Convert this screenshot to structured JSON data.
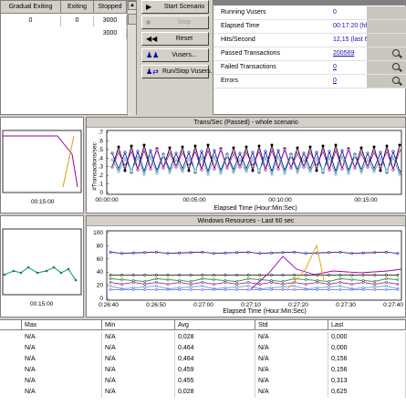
{
  "groups_grid": {
    "columns": [
      "Gradual Exiting",
      "Exiting",
      "Stopped"
    ],
    "rows": [
      [
        "0",
        "0",
        "3000"
      ],
      [
        "",
        "",
        "3000"
      ]
    ]
  },
  "controls": {
    "start_label": "Start Scenario",
    "stop_label": "Stop",
    "reset_label": "Reset",
    "vusers_label": "Vusers...",
    "runstop_label": "Run/Stop Vusers..."
  },
  "scenario_status": {
    "rows": [
      {
        "name": "Running Vusers",
        "value": "0",
        "link": false
      },
      {
        "name": "Elapsed Time",
        "value": "00:17:20 (hh:mm:ss)",
        "link": false
      },
      {
        "name": "Hits/Second",
        "value": "12,15 (last 60 sec)",
        "link": false
      },
      {
        "name": "Passed Transactions",
        "value": "200569",
        "link": true
      },
      {
        "name": "Failed Transactions",
        "value": "0",
        "link": true
      },
      {
        "name": "Errors",
        "value": "0",
        "link": true
      }
    ]
  },
  "graph_left_top": {
    "xtick": "00:15:00"
  },
  "graph_trans": {
    "title": "Trans/Sec (Passed) - whole scenario",
    "xlabel": "Elapsed Time (Hour:Min:Sec)",
    "ylabel": "#Transactions/sec",
    "yticks": [
      ".7",
      ".6",
      ".5",
      ".4",
      ".3",
      ".2",
      ".1",
      "0"
    ],
    "xticks": [
      "00:00:00",
      "00:05:00",
      "00:10:00",
      "00:15:00"
    ]
  },
  "graph_left_bottom": {
    "xtick": "00:15:00"
  },
  "graph_win": {
    "title": "Windows Resources - Last 60 sec",
    "xlabel": "Elapsed Time (Hour:Min:Sec)",
    "yticks": [
      "100",
      "80",
      "60",
      "40",
      "20",
      "0"
    ],
    "xticks": [
      "0:26:40",
      "0:26:50",
      "0:27:00",
      "0:27:10",
      "0:27:20",
      "0:27:30",
      "0:27:40"
    ]
  },
  "measurements": {
    "columns": [
      "Max",
      "Min",
      "Avg",
      "Std",
      "Last"
    ],
    "rows": [
      [
        "N/A",
        "N/A",
        "0,028",
        "N/A",
        "0,000"
      ],
      [
        "N/A",
        "N/A",
        "0,464",
        "N/A",
        "0,000"
      ],
      [
        "N/A",
        "N/A",
        "0,464",
        "N/A",
        "0,156"
      ],
      [
        "N/A",
        "N/A",
        "0,459",
        "N/A",
        "0,156"
      ],
      [
        "N/A",
        "N/A",
        "0,455",
        "N/A",
        "0,313"
      ],
      [
        "N/A",
        "N/A",
        "0,028",
        "N/A",
        "0,625"
      ]
    ]
  },
  "colors": {
    "face": "#d4d0c8",
    "link": "#1010b0",
    "series": [
      "#000000",
      "#0000a0",
      "#008000",
      "#e0a000",
      "#a000a0",
      "#40a0a0",
      "#6060ff"
    ]
  }
}
